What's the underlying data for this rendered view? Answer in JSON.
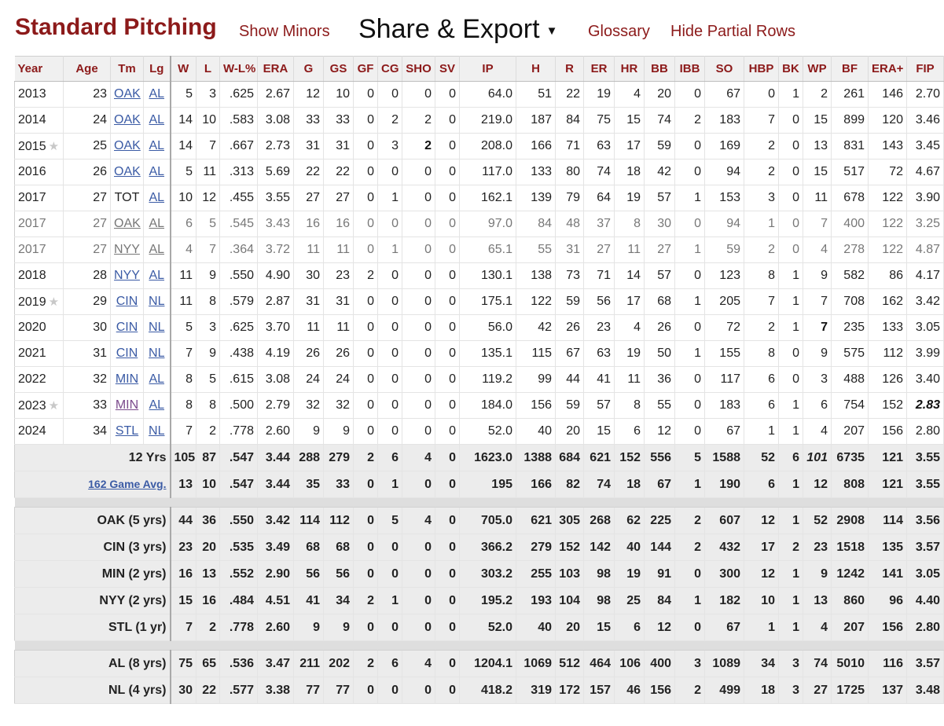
{
  "header": {
    "title": "Standard Pitching",
    "show_minors": "Show Minors",
    "share_export": "Share & Export",
    "share_caret": "▼",
    "glossary": "Glossary",
    "hide_partial": "Hide Partial Rows"
  },
  "columns": [
    "Year",
    "Age",
    "Tm",
    "Lg",
    "W",
    "L",
    "W-L%",
    "ERA",
    "G",
    "GS",
    "GF",
    "CG",
    "SHO",
    "SV",
    "IP",
    "H",
    "R",
    "ER",
    "HR",
    "BB",
    "IBB",
    "SO",
    "HBP",
    "BK",
    "WP",
    "BF",
    "ERA+",
    "FIP"
  ],
  "rows": [
    {
      "year": "2013",
      "star": "",
      "age": "23",
      "tm": "OAK",
      "lg": "AL",
      "partial": false,
      "stats": [
        "5",
        "3",
        ".625",
        "2.67",
        "12",
        "10",
        "0",
        "0",
        "0",
        "0",
        "64.0",
        "51",
        "22",
        "19",
        "4",
        "20",
        "0",
        "67",
        "0",
        "1",
        "2",
        "261",
        "146",
        "2.70"
      ]
    },
    {
      "year": "2014",
      "star": "",
      "age": "24",
      "tm": "OAK",
      "lg": "AL",
      "partial": false,
      "stats": [
        "14",
        "10",
        ".583",
        "3.08",
        "33",
        "33",
        "0",
        "2",
        "2",
        "0",
        "219.0",
        "187",
        "84",
        "75",
        "15",
        "74",
        "2",
        "183",
        "7",
        "0",
        "15",
        "899",
        "120",
        "3.46"
      ]
    },
    {
      "year": "2015",
      "star": "★",
      "age": "25",
      "tm": "OAK",
      "lg": "AL",
      "partial": false,
      "stats": [
        "14",
        "7",
        ".667",
        "2.73",
        "31",
        "31",
        "0",
        "3",
        "2",
        "0",
        "208.0",
        "166",
        "71",
        "63",
        "17",
        "59",
        "0",
        "169",
        "2",
        "0",
        "13",
        "831",
        "143",
        "3.45"
      ]
    },
    {
      "year": "2016",
      "star": "",
      "age": "26",
      "tm": "OAK",
      "lg": "AL",
      "partial": false,
      "stats": [
        "5",
        "11",
        ".313",
        "5.69",
        "22",
        "22",
        "0",
        "0",
        "0",
        "0",
        "117.0",
        "133",
        "80",
        "74",
        "18",
        "42",
        "0",
        "94",
        "2",
        "0",
        "15",
        "517",
        "72",
        "4.67"
      ]
    },
    {
      "year": "2017",
      "star": "",
      "age": "27",
      "tm": "TOT",
      "lg": "AL",
      "partial": false,
      "stats": [
        "10",
        "12",
        ".455",
        "3.55",
        "27",
        "27",
        "0",
        "1",
        "0",
        "0",
        "162.1",
        "139",
        "79",
        "64",
        "19",
        "57",
        "1",
        "153",
        "3",
        "0",
        "11",
        "678",
        "122",
        "3.90"
      ]
    },
    {
      "year": "2017",
      "star": "",
      "age": "27",
      "tm": "OAK",
      "lg": "AL",
      "partial": true,
      "stats": [
        "6",
        "5",
        ".545",
        "3.43",
        "16",
        "16",
        "0",
        "0",
        "0",
        "0",
        "97.0",
        "84",
        "48",
        "37",
        "8",
        "30",
        "0",
        "94",
        "1",
        "0",
        "7",
        "400",
        "122",
        "3.25"
      ]
    },
    {
      "year": "2017",
      "star": "",
      "age": "27",
      "tm": "NYY",
      "lg": "AL",
      "partial": true,
      "stats": [
        "4",
        "7",
        ".364",
        "3.72",
        "11",
        "11",
        "0",
        "1",
        "0",
        "0",
        "65.1",
        "55",
        "31",
        "27",
        "11",
        "27",
        "1",
        "59",
        "2",
        "0",
        "4",
        "278",
        "122",
        "4.87"
      ]
    },
    {
      "year": "2018",
      "star": "",
      "age": "28",
      "tm": "NYY",
      "lg": "AL",
      "partial": false,
      "stats": [
        "11",
        "9",
        ".550",
        "4.90",
        "30",
        "23",
        "2",
        "0",
        "0",
        "0",
        "130.1",
        "138",
        "73",
        "71",
        "14",
        "57",
        "0",
        "123",
        "8",
        "1",
        "9",
        "582",
        "86",
        "4.17"
      ]
    },
    {
      "year": "2019",
      "star": "★",
      "age": "29",
      "tm": "CIN",
      "lg": "NL",
      "partial": false,
      "stats": [
        "11",
        "8",
        ".579",
        "2.87",
        "31",
        "31",
        "0",
        "0",
        "0",
        "0",
        "175.1",
        "122",
        "59",
        "56",
        "17",
        "68",
        "1",
        "205",
        "7",
        "1",
        "7",
        "708",
        "162",
        "3.42"
      ]
    },
    {
      "year": "2020",
      "star": "",
      "age": "30",
      "tm": "CIN",
      "lg": "NL",
      "partial": false,
      "stats": [
        "5",
        "3",
        ".625",
        "3.70",
        "11",
        "11",
        "0",
        "0",
        "0",
        "0",
        "56.0",
        "42",
        "26",
        "23",
        "4",
        "26",
        "0",
        "72",
        "2",
        "1",
        "7",
        "235",
        "133",
        "3.05"
      ]
    },
    {
      "year": "2021",
      "star": "",
      "age": "31",
      "tm": "CIN",
      "lg": "NL",
      "partial": false,
      "stats": [
        "7",
        "9",
        ".438",
        "4.19",
        "26",
        "26",
        "0",
        "0",
        "0",
        "0",
        "135.1",
        "115",
        "67",
        "63",
        "19",
        "50",
        "1",
        "155",
        "8",
        "0",
        "9",
        "575",
        "112",
        "3.99"
      ]
    },
    {
      "year": "2022",
      "star": "",
      "age": "32",
      "tm": "MIN",
      "lg": "AL",
      "partial": false,
      "stats": [
        "8",
        "5",
        ".615",
        "3.08",
        "24",
        "24",
        "0",
        "0",
        "0",
        "0",
        "119.2",
        "99",
        "44",
        "41",
        "11",
        "36",
        "0",
        "117",
        "6",
        "0",
        "3",
        "488",
        "126",
        "3.40"
      ]
    },
    {
      "year": "2023",
      "star": "★",
      "age": "33",
      "tm": "MIN",
      "lg": "AL",
      "partial": false,
      "stats": [
        "8",
        "8",
        ".500",
        "2.79",
        "32",
        "32",
        "0",
        "0",
        "0",
        "0",
        "184.0",
        "156",
        "59",
        "57",
        "8",
        "55",
        "0",
        "183",
        "6",
        "1",
        "6",
        "754",
        "152",
        "2.83"
      ]
    },
    {
      "year": "2024",
      "star": "",
      "age": "34",
      "tm": "STL",
      "lg": "NL",
      "partial": false,
      "stats": [
        "7",
        "2",
        ".778",
        "2.60",
        "9",
        "9",
        "0",
        "0",
        "0",
        "0",
        "52.0",
        "40",
        "20",
        "15",
        "6",
        "12",
        "0",
        "67",
        "1",
        "1",
        "4",
        "207",
        "156",
        "2.80"
      ]
    }
  ],
  "summary": [
    {
      "label": "12 Yrs",
      "link": false,
      "stats": [
        "105",
        "87",
        ".547",
        "3.44",
        "288",
        "279",
        "2",
        "6",
        "4",
        "0",
        "1623.0",
        "1388",
        "684",
        "621",
        "152",
        "556",
        "5",
        "1588",
        "52",
        "6",
        "101",
        "6735",
        "121",
        "3.55"
      ]
    },
    {
      "label": "162 Game Avg.",
      "link": true,
      "stats": [
        "13",
        "10",
        ".547",
        "3.44",
        "35",
        "33",
        "0",
        "1",
        "0",
        "0",
        "195",
        "166",
        "82",
        "74",
        "18",
        "67",
        "1",
        "190",
        "6",
        "1",
        "12",
        "808",
        "121",
        "3.55"
      ]
    }
  ],
  "teams": [
    {
      "label": "OAK (5 yrs)",
      "stats": [
        "44",
        "36",
        ".550",
        "3.42",
        "114",
        "112",
        "0",
        "5",
        "4",
        "0",
        "705.0",
        "621",
        "305",
        "268",
        "62",
        "225",
        "2",
        "607",
        "12",
        "1",
        "52",
        "2908",
        "114",
        "3.56"
      ]
    },
    {
      "label": "CIN (3 yrs)",
      "stats": [
        "23",
        "20",
        ".535",
        "3.49",
        "68",
        "68",
        "0",
        "0",
        "0",
        "0",
        "366.2",
        "279",
        "152",
        "142",
        "40",
        "144",
        "2",
        "432",
        "17",
        "2",
        "23",
        "1518",
        "135",
        "3.57"
      ]
    },
    {
      "label": "MIN (2 yrs)",
      "stats": [
        "16",
        "13",
        ".552",
        "2.90",
        "56",
        "56",
        "0",
        "0",
        "0",
        "0",
        "303.2",
        "255",
        "103",
        "98",
        "19",
        "91",
        "0",
        "300",
        "12",
        "1",
        "9",
        "1242",
        "141",
        "3.05"
      ]
    },
    {
      "label": "NYY (2 yrs)",
      "stats": [
        "15",
        "16",
        ".484",
        "4.51",
        "41",
        "34",
        "2",
        "1",
        "0",
        "0",
        "195.2",
        "193",
        "104",
        "98",
        "25",
        "84",
        "1",
        "182",
        "10",
        "1",
        "13",
        "860",
        "96",
        "4.40"
      ]
    },
    {
      "label": "STL (1 yr)",
      "stats": [
        "7",
        "2",
        ".778",
        "2.60",
        "9",
        "9",
        "0",
        "0",
        "0",
        "0",
        "52.0",
        "40",
        "20",
        "15",
        "6",
        "12",
        "0",
        "67",
        "1",
        "1",
        "4",
        "207",
        "156",
        "2.80"
      ]
    }
  ],
  "leagues": [
    {
      "label": "AL (8 yrs)",
      "stats": [
        "75",
        "65",
        ".536",
        "3.47",
        "211",
        "202",
        "2",
        "6",
        "4",
        "0",
        "1204.1",
        "1069",
        "512",
        "464",
        "106",
        "400",
        "3",
        "1089",
        "34",
        "3",
        "74",
        "5010",
        "116",
        "3.57"
      ]
    },
    {
      "label": "NL (4 yrs)",
      "stats": [
        "30",
        "22",
        ".577",
        "3.38",
        "77",
        "77",
        "0",
        "0",
        "0",
        "0",
        "418.2",
        "319",
        "172",
        "157",
        "46",
        "156",
        "2",
        "499",
        "18",
        "3",
        "27",
        "1725",
        "137",
        "3.48"
      ]
    }
  ],
  "emphasis": {
    "bold": [
      [
        "2015",
        "SHO"
      ],
      [
        "2020",
        "WP"
      ]
    ],
    "italic": [
      [
        "2023",
        "FIP"
      ],
      [
        "12 Yrs",
        "WP"
      ]
    ],
    "bold_italic": [
      [
        "2023",
        "FIP"
      ]
    ],
    "visited_links": [
      [
        "2023",
        "MIN"
      ]
    ]
  },
  "colors": {
    "accent": "#8c1a1a",
    "link": "#3b5ba5",
    "visited_link": "#7b4a8c",
    "partial_text": "#777777",
    "footer_bg": "#ececec"
  }
}
